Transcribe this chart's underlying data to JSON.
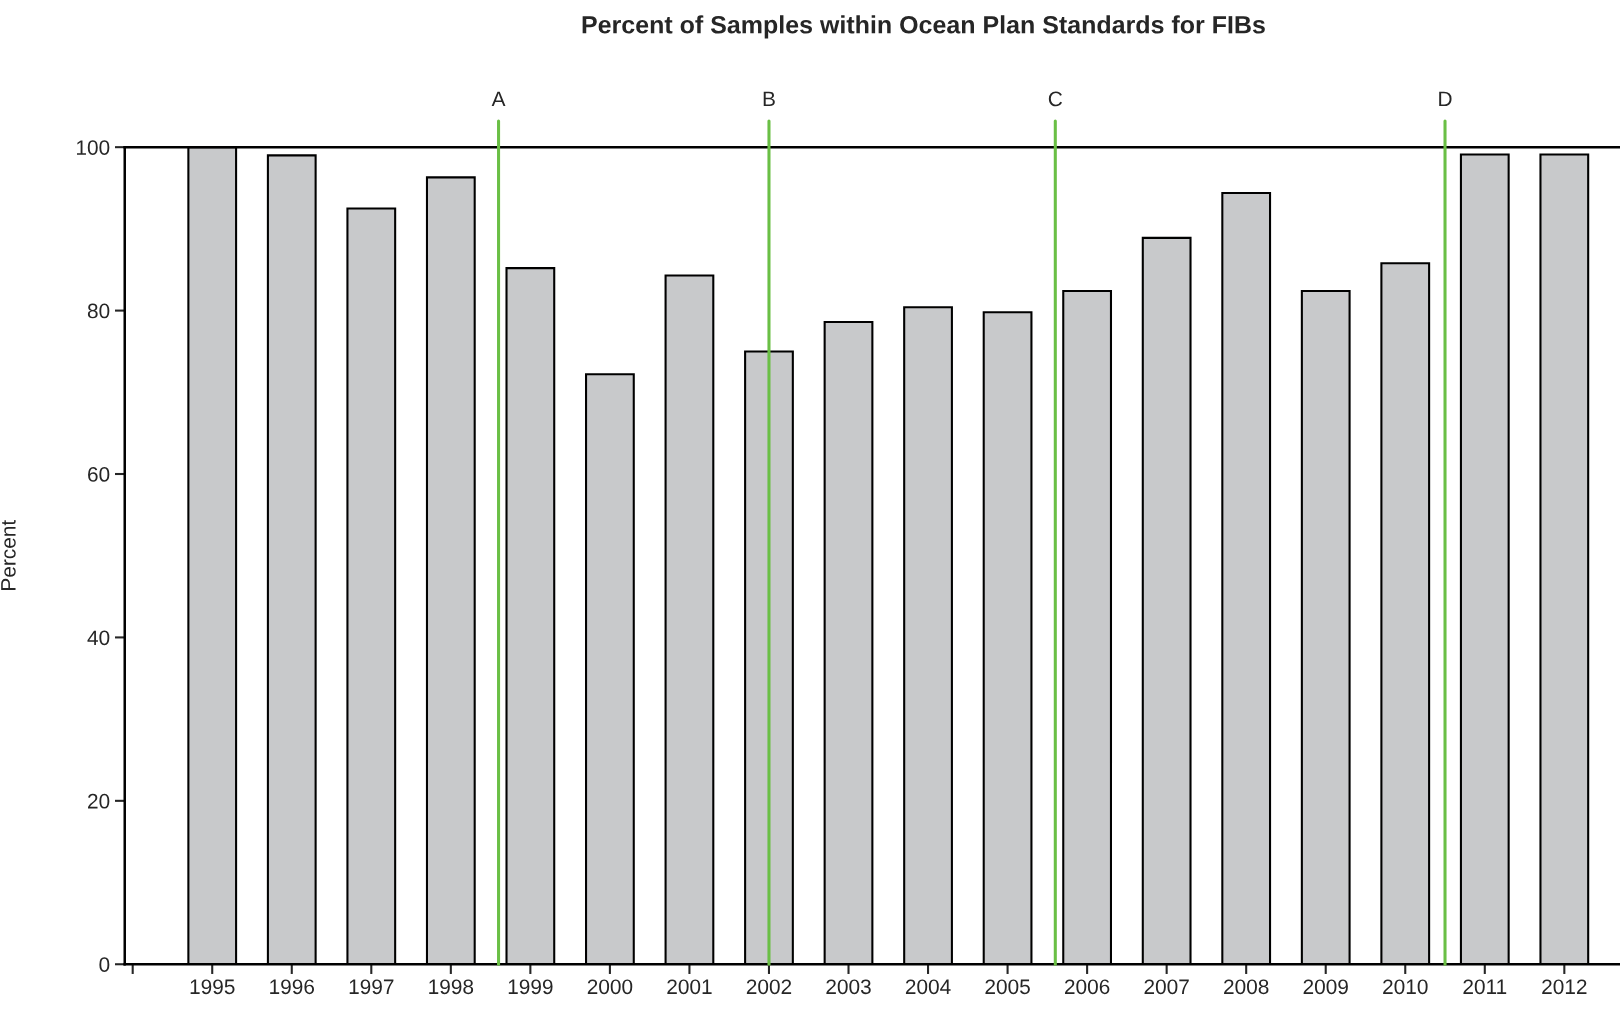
{
  "chart_data": {
    "type": "bar",
    "title": "Percent of Samples within Ocean Plan Standards for FIBs",
    "ylabel": "Percent",
    "x": [
      1995,
      1996,
      1997,
      1998,
      1999,
      2000,
      2001,
      2002,
      2003,
      2004,
      2005,
      2006,
      2007,
      2008,
      2009,
      2010,
      2011,
      2012
    ],
    "values": [
      100,
      99.0,
      92.5,
      96.3,
      85.2,
      72.2,
      84.3,
      75.0,
      78.6,
      80.4,
      79.8,
      82.4,
      88.9,
      94.4,
      82.4,
      85.8,
      99.1,
      99.1
    ],
    "color": "#c8c9cb",
    "xlim": [
      1993.9,
      2012.7
    ],
    "xticks": [
      {
        "value": 1994,
        "label": null
      },
      1995,
      1996,
      1997,
      1998,
      1999,
      2000,
      2001,
      2002,
      2003,
      2004,
      2005,
      2006,
      2007,
      2008,
      2009,
      2010,
      2011,
      2012
    ],
    "ylim": [
      0,
      100
    ],
    "yticks": [
      0,
      20,
      40,
      60,
      80,
      100
    ],
    "grid": false,
    "ref_lines": [
      {
        "axis": "x",
        "value": 1998.6,
        "label": "A",
        "color": "#6abf45"
      },
      {
        "axis": "x",
        "value": 2002,
        "label": "B",
        "color": "#6abf45"
      },
      {
        "axis": "x",
        "value": 2005.6,
        "label": "C",
        "color": "#6abf45"
      },
      {
        "axis": "x",
        "value": 2010.5,
        "label": "D",
        "color": "#6abf45"
      }
    ]
  }
}
